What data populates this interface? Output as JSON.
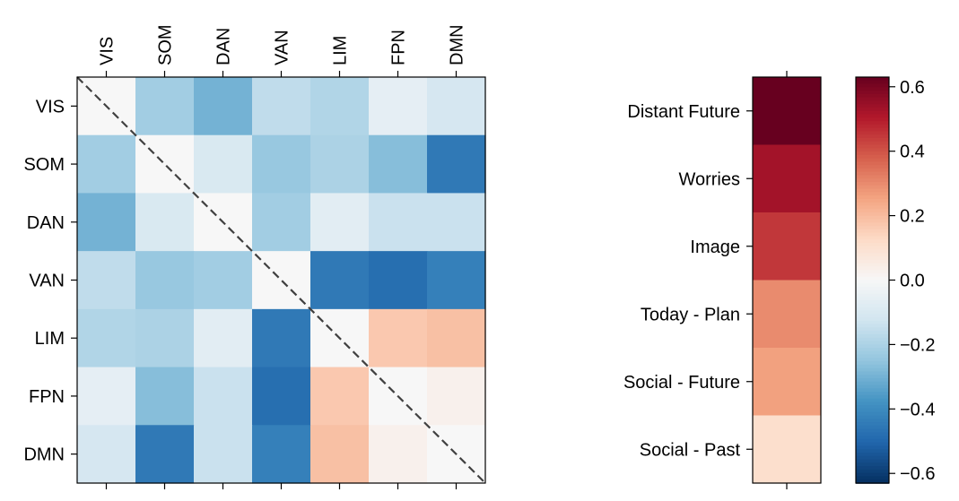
{
  "chart_data": [
    {
      "type": "heatmap",
      "title": "",
      "categories": [
        "VIS",
        "SOM",
        "DAN",
        "VAN",
        "LIM",
        "FPN",
        "DMN"
      ],
      "values": [
        [
          0.0,
          -0.22,
          -0.3,
          -0.16,
          -0.19,
          -0.06,
          -0.11
        ],
        [
          -0.22,
          0.0,
          -0.1,
          -0.24,
          -0.2,
          -0.27,
          -0.45
        ],
        [
          -0.3,
          -0.1,
          0.0,
          -0.22,
          -0.07,
          -0.14,
          -0.14
        ],
        [
          -0.16,
          -0.24,
          -0.22,
          0.0,
          -0.45,
          -0.48,
          -0.43
        ],
        [
          -0.19,
          -0.2,
          -0.07,
          -0.45,
          0.0,
          0.17,
          0.19
        ],
        [
          -0.06,
          -0.27,
          -0.14,
          -0.48,
          0.17,
          0.0,
          0.03
        ],
        [
          -0.11,
          -0.45,
          -0.14,
          -0.43,
          0.19,
          0.03,
          0.0
        ]
      ],
      "diagonal_line": "dashed",
      "colormap": "RdBu_r",
      "vlim": [
        -0.63,
        0.63
      ]
    },
    {
      "type": "heatmap",
      "title": "",
      "categories": [
        "Distant Future",
        "Worries",
        "Image",
        "Today - Plan",
        "Social - Future",
        "Social - Past"
      ],
      "values": [
        0.63,
        0.53,
        0.45,
        0.3,
        0.26,
        0.11
      ],
      "colormap": "RdBu_r",
      "vlim": [
        -0.63,
        0.63
      ]
    }
  ],
  "colorbar": {
    "ticks": [
      0.6,
      0.4,
      0.2,
      0.0,
      -0.2,
      -0.4,
      -0.6
    ],
    "tick_labels": [
      "0.6",
      "0.4",
      "0.2",
      "0.0",
      "−0.2",
      "−0.4",
      "−0.6"
    ],
    "range": [
      -0.63,
      0.63
    ]
  }
}
